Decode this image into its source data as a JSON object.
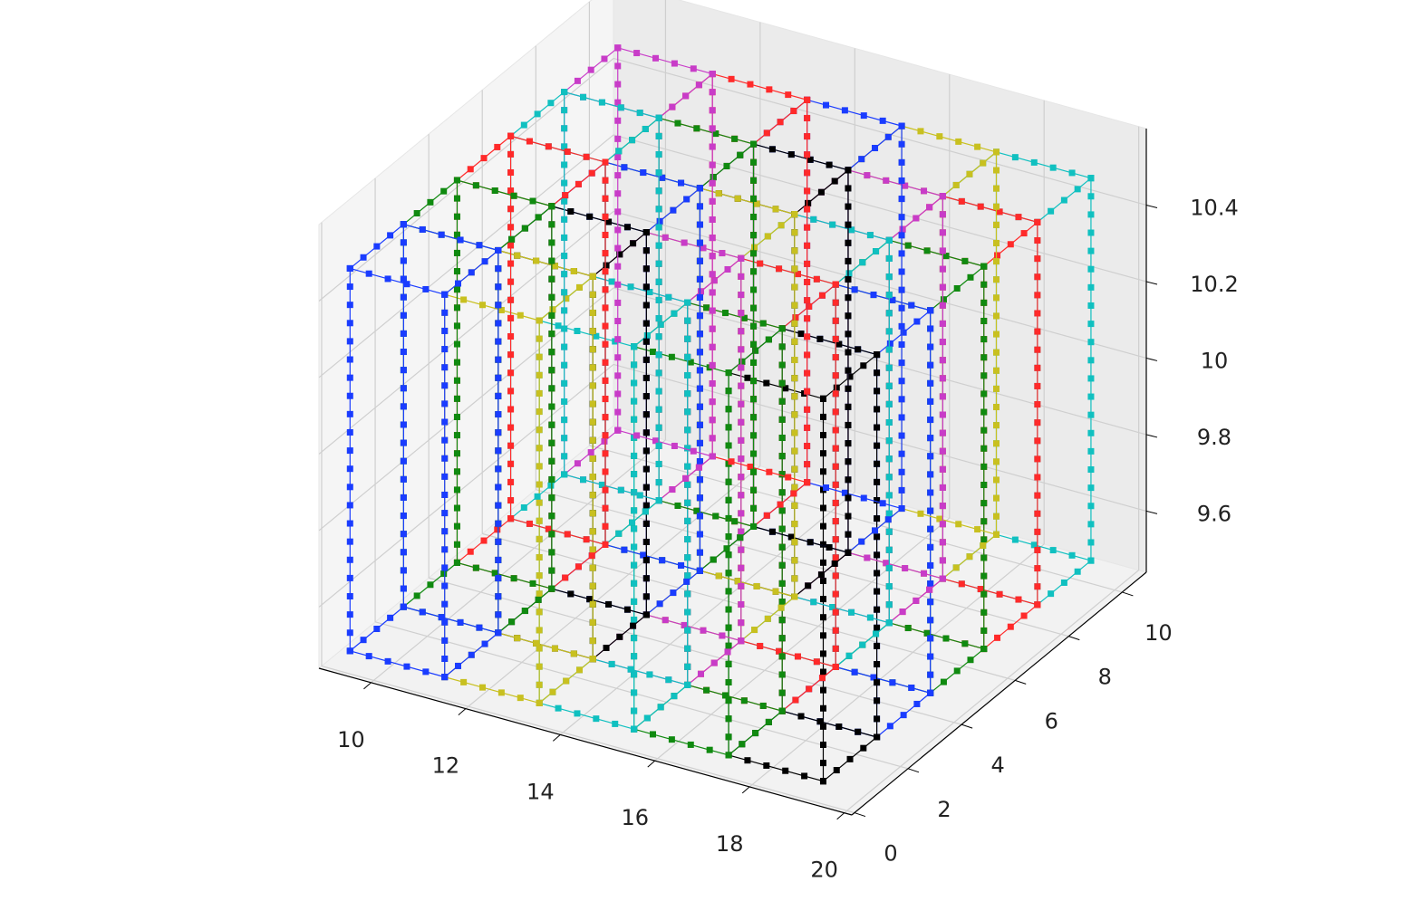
{
  "chart_data": {
    "type": "wireframe3d",
    "xlim": [
      8.9,
      20.16
    ],
    "ylim": [
      -0.1,
      10.9
    ],
    "zlim": [
      9.44,
      10.6
    ],
    "xticks": [
      10,
      12,
      14,
      16,
      18,
      20
    ],
    "yticks": [
      0,
      2,
      4,
      6,
      8,
      10
    ],
    "zticks": [
      9.6,
      9.8,
      10.0,
      10.2,
      10.4
    ],
    "grid": true,
    "boxes": [
      {
        "x": [
          9.5,
          11.5
        ],
        "y": [
          0,
          2
        ],
        "z": [
          9.5,
          10.5
        ],
        "color": "#1a3cff"
      },
      {
        "x": [
          9.5,
          11.5
        ],
        "y": [
          2,
          4
        ],
        "z": [
          9.5,
          10.5
        ],
        "color": "#108a10"
      },
      {
        "x": [
          9.5,
          11.5
        ],
        "y": [
          4,
          6
        ],
        "z": [
          9.5,
          10.5
        ],
        "color": "#ff2a2a"
      },
      {
        "x": [
          9.5,
          11.5
        ],
        "y": [
          6,
          8
        ],
        "z": [
          9.5,
          10.5
        ],
        "color": "#10c0c0"
      },
      {
        "x": [
          9.5,
          11.5
        ],
        "y": [
          8,
          10
        ],
        "z": [
          9.5,
          10.5
        ],
        "color": "#c83cc8"
      },
      {
        "x": [
          11.5,
          13.5
        ],
        "y": [
          0,
          2
        ],
        "z": [
          9.5,
          10.5
        ],
        "color": "#c8c020"
      },
      {
        "x": [
          11.5,
          13.5
        ],
        "y": [
          2,
          4
        ],
        "z": [
          9.5,
          10.5
        ],
        "color": "#000000"
      },
      {
        "x": [
          11.5,
          13.5
        ],
        "y": [
          4,
          6
        ],
        "z": [
          9.5,
          10.5
        ],
        "color": "#1a3cff"
      },
      {
        "x": [
          11.5,
          13.5
        ],
        "y": [
          6,
          8
        ],
        "z": [
          9.5,
          10.5
        ],
        "color": "#108a10"
      },
      {
        "x": [
          11.5,
          13.5
        ],
        "y": [
          8,
          10
        ],
        "z": [
          9.5,
          10.5
        ],
        "color": "#ff2a2a"
      },
      {
        "x": [
          13.5,
          15.5
        ],
        "y": [
          0,
          2
        ],
        "z": [
          9.5,
          10.5
        ],
        "color": "#10c0c0"
      },
      {
        "x": [
          13.5,
          15.5
        ],
        "y": [
          2,
          4
        ],
        "z": [
          9.5,
          10.5
        ],
        "color": "#c83cc8"
      },
      {
        "x": [
          13.5,
          15.5
        ],
        "y": [
          4,
          6
        ],
        "z": [
          9.5,
          10.5
        ],
        "color": "#c8c020"
      },
      {
        "x": [
          13.5,
          15.5
        ],
        "y": [
          6,
          8
        ],
        "z": [
          9.5,
          10.5
        ],
        "color": "#000000"
      },
      {
        "x": [
          13.5,
          15.5
        ],
        "y": [
          8,
          10
        ],
        "z": [
          9.5,
          10.5
        ],
        "color": "#1a3cff"
      },
      {
        "x": [
          15.5,
          17.5
        ],
        "y": [
          0,
          2
        ],
        "z": [
          9.5,
          10.5
        ],
        "color": "#108a10"
      },
      {
        "x": [
          15.5,
          17.5
        ],
        "y": [
          2,
          4
        ],
        "z": [
          9.5,
          10.5
        ],
        "color": "#ff2a2a"
      },
      {
        "x": [
          15.5,
          17.5
        ],
        "y": [
          4,
          6
        ],
        "z": [
          9.5,
          10.5
        ],
        "color": "#10c0c0"
      },
      {
        "x": [
          15.5,
          17.5
        ],
        "y": [
          6,
          8
        ],
        "z": [
          9.5,
          10.5
        ],
        "color": "#c83cc8"
      },
      {
        "x": [
          15.5,
          17.5
        ],
        "y": [
          8,
          10
        ],
        "z": [
          9.5,
          10.5
        ],
        "color": "#c8c020"
      },
      {
        "x": [
          17.5,
          19.5
        ],
        "y": [
          0,
          2
        ],
        "z": [
          9.5,
          10.5
        ],
        "color": "#000000"
      },
      {
        "x": [
          17.5,
          19.5
        ],
        "y": [
          2,
          4
        ],
        "z": [
          9.5,
          10.5
        ],
        "color": "#1a3cff"
      },
      {
        "x": [
          17.5,
          19.5
        ],
        "y": [
          4,
          6
        ],
        "z": [
          9.5,
          10.5
        ],
        "color": "#108a10"
      },
      {
        "x": [
          17.5,
          19.5
        ],
        "y": [
          6,
          8
        ],
        "z": [
          9.5,
          10.5
        ],
        "color": "#ff2a2a"
      },
      {
        "x": [
          17.5,
          19.5
        ],
        "y": [
          8,
          10
        ],
        "z": [
          9.5,
          10.5
        ],
        "color": "#10c0c0"
      }
    ]
  }
}
